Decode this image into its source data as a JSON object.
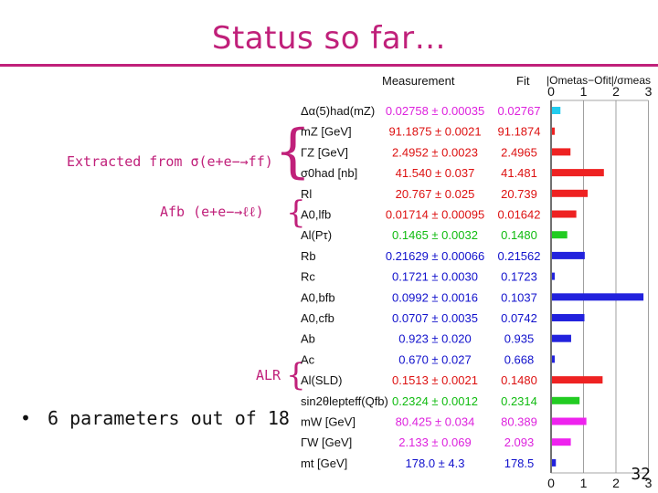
{
  "slide": {
    "title": "Status so far…",
    "annotations": {
      "extracted": "Extracted from σ(e+e−→ff)",
      "afb": "Afb (e+e−→ℓℓ)",
      "alr": "ALR"
    },
    "bullet": "6 parameters out of 18",
    "page_number": "32"
  },
  "table": {
    "header_measurement": "Measurement",
    "header_fit": "Fit",
    "header_pull": "|Ometas−Ofit|/σmeas",
    "axis_ticks": [
      "0",
      "1",
      "2",
      "3"
    ],
    "rows": [
      {
        "label": "Δα(5)had(mZ)",
        "measurement": "0.02758 ± 0.00035",
        "fit": "0.02767",
        "pull": 0.26,
        "color": "#22ccee"
      },
      {
        "label": "mZ [GeV]",
        "measurement": "91.1875 ± 0.0021",
        "fit": "91.1874",
        "pull": 0.05,
        "color": "#ee2222"
      },
      {
        "label": "ΓZ [GeV]",
        "measurement": "2.4952 ± 0.0023",
        "fit": "2.4965",
        "pull": 0.57,
        "color": "#ee2222"
      },
      {
        "label": "σ0had [nb]",
        "measurement": "41.540 ± 0.037",
        "fit": "41.481",
        "pull": 1.6,
        "color": "#ee2222"
      },
      {
        "label": "Rl",
        "measurement": "20.767 ± 0.025",
        "fit": "20.739",
        "pull": 1.1,
        "color": "#ee2222"
      },
      {
        "label": "A0,lfb",
        "measurement": "0.01714 ± 0.00095",
        "fit": "0.01642",
        "pull": 0.75,
        "color": "#ee2222"
      },
      {
        "label": "Al(Pτ)",
        "measurement": "0.1465 ± 0.0032",
        "fit": "0.1480",
        "pull": 0.47,
        "color": "#22cc22"
      },
      {
        "label": "Rb",
        "measurement": "0.21629 ± 0.00066",
        "fit": "0.21562",
        "pull": 1.01,
        "color": "#2222dd"
      },
      {
        "label": "Rc",
        "measurement": "0.1721 ± 0.0030",
        "fit": "0.1723",
        "pull": 0.06,
        "color": "#2222dd"
      },
      {
        "label": "A0,bfb",
        "measurement": "0.0992 ± 0.0016",
        "fit": "0.1037",
        "pull": 2.82,
        "color": "#2222dd"
      },
      {
        "label": "A0,cfb",
        "measurement": "0.0707 ± 0.0035",
        "fit": "0.0742",
        "pull": 1.0,
        "color": "#2222dd"
      },
      {
        "label": "Ab",
        "measurement": "0.923 ± 0.020",
        "fit": "0.935",
        "pull": 0.59,
        "color": "#2222dd"
      },
      {
        "label": "Ac",
        "measurement": "0.670 ± 0.027",
        "fit": "0.668",
        "pull": 0.06,
        "color": "#2222dd"
      },
      {
        "label": "Al(SLD)",
        "measurement": "0.1513 ± 0.0021",
        "fit": "0.1480",
        "pull": 1.56,
        "color": "#ee2222"
      },
      {
        "label": "sin2θlepteff(Qfb)",
        "measurement": "0.2324 ± 0.0012",
        "fit": "0.2314",
        "pull": 0.85,
        "color": "#22cc22"
      },
      {
        "label": "mW [GeV]",
        "measurement": "80.425 ± 0.034",
        "fit": "80.389",
        "pull": 1.06,
        "color": "#ee22ee"
      },
      {
        "label": "ΓW [GeV]",
        "measurement": "2.133 ± 0.069",
        "fit": "2.093",
        "pull": 0.58,
        "color": "#ee22ee"
      },
      {
        "label": "mt [GeV]",
        "measurement": "178.0 ± 4.3",
        "fit": "178.5",
        "pull": 0.12,
        "color": "#2222dd"
      }
    ],
    "label_colors": {
      "magenta": "#dd22dd",
      "red": "#dd1111",
      "green": "#11bb11",
      "blue": "#1111cc",
      "black": "#111111"
    }
  }
}
